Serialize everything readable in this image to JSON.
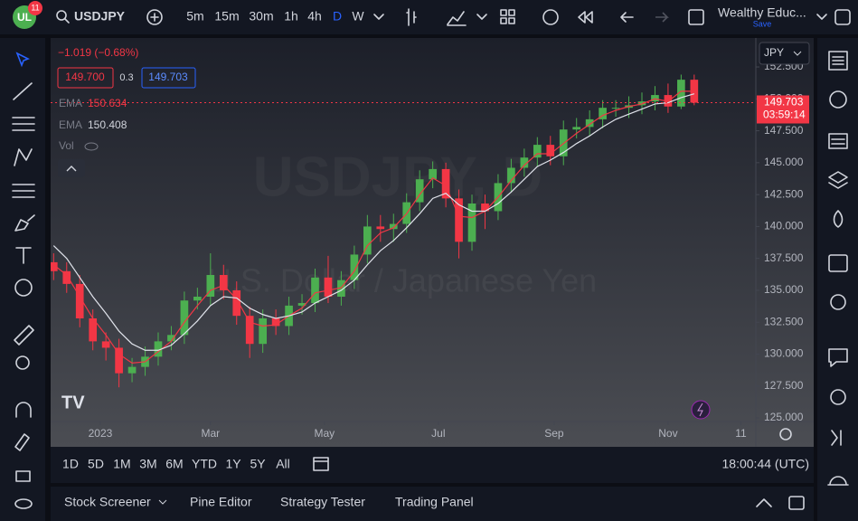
{
  "toolbar": {
    "badge": "11",
    "symbol": "USDJPY",
    "intervals": [
      "5m",
      "15m",
      "30m",
      "1h",
      "4h",
      "D",
      "W"
    ],
    "layout_name": "Wealthy Educ...",
    "save": "Save"
  },
  "legend": {
    "change": "−1.019 (−0.68%)",
    "sell": "149.700",
    "spread": "0.3",
    "buy": "149.703",
    "volume": "Vol"
  },
  "watermark": {
    "title": "USDJPY, D",
    "subtitle": "U.S. Dollar / Japanese Yen"
  },
  "chart_data": {
    "type": "candlestick",
    "currency": "JPY",
    "x": [
      -25,
      -18,
      -11,
      -4,
      3,
      10,
      17,
      24,
      31,
      38,
      45,
      52,
      59,
      66,
      73,
      80,
      87,
      94,
      101,
      108,
      115,
      122,
      129,
      136,
      143,
      150,
      157,
      164,
      171,
      178,
      185,
      192,
      199,
      206,
      213,
      220,
      227,
      234,
      241,
      248,
      255,
      262,
      269,
      276,
      283,
      290,
      297,
      304,
      311,
      318
    ],
    "open": [
      137.2,
      136.5,
      135.5,
      132.8,
      131.0,
      130.5,
      128.5,
      129.0,
      129.8,
      131.0,
      131.5,
      134.2,
      134.5,
      136.2,
      135.0,
      133.0,
      130.8,
      132.8,
      132.2,
      133.8,
      134.0,
      136.0,
      134.5,
      135.8,
      137.8,
      140.0,
      139.8,
      140.2,
      141.9,
      143.7,
      144.5,
      142.2,
      138.8,
      141.8,
      141.2,
      143.4,
      144.6,
      145.4,
      146.4,
      145.5,
      147.6,
      147.8,
      148.4,
      149.3,
      149.3,
      149.5,
      149.8,
      150.3,
      149.4,
      151.5
    ],
    "high": [
      137.9,
      137.2,
      136.2,
      133.5,
      131.7,
      131.2,
      129.7,
      130.6,
      131.7,
      132.2,
      134.9,
      135.2,
      137.9,
      137.0,
      135.7,
      133.7,
      133.5,
      133.5,
      134.5,
      134.7,
      136.7,
      137.7,
      136.5,
      138.5,
      140.9,
      140.9,
      141.0,
      142.6,
      144.4,
      145.1,
      145.0,
      142.9,
      142.5,
      142.5,
      144.1,
      145.3,
      146.1,
      147.0,
      147.1,
      148.3,
      148.5,
      149.1,
      149.9,
      149.9,
      150.2,
      150.5,
      151.0,
      151.2,
      151.9,
      151.9
    ],
    "low": [
      135.8,
      134.8,
      132.1,
      130.3,
      129.5,
      127.4,
      127.8,
      128.3,
      129.1,
      130.3,
      130.8,
      133.5,
      133.8,
      134.3,
      132.3,
      129.7,
      130.1,
      131.5,
      131.5,
      133.1,
      133.3,
      134.0,
      133.8,
      135.1,
      137.1,
      138.8,
      138.8,
      139.5,
      141.2,
      143.0,
      141.5,
      137.5,
      138.1,
      139.8,
      140.5,
      142.7,
      143.9,
      144.7,
      144.8,
      144.8,
      146.9,
      147.1,
      147.7,
      148.6,
      148.5,
      148.8,
      149.1,
      148.9,
      149.2,
      149.5
    ],
    "close": [
      136.5,
      135.5,
      132.8,
      131.0,
      130.5,
      128.5,
      129.0,
      129.8,
      131.0,
      131.5,
      134.2,
      134.5,
      136.2,
      135.0,
      133.0,
      130.8,
      132.8,
      132.2,
      133.8,
      134.0,
      136.0,
      134.5,
      135.8,
      137.8,
      140.0,
      139.8,
      140.2,
      141.9,
      143.7,
      144.5,
      142.2,
      138.8,
      141.8,
      141.2,
      143.4,
      144.6,
      145.4,
      146.4,
      145.5,
      147.6,
      147.8,
      148.4,
      149.3,
      149.3,
      149.5,
      149.8,
      150.3,
      149.4,
      151.5,
      149.7
    ],
    "up_color": "#4caf50",
    "down_color": "#f23645",
    "series": [
      {
        "name": "EMA",
        "color": "#f23645",
        "legend_value": 150.634,
        "values": [
          137.0,
          136.2,
          134.5,
          132.8,
          131.5,
          130.0,
          129.3,
          129.4,
          130.2,
          131.0,
          132.5,
          133.8,
          135.0,
          135.4,
          134.3,
          132.5,
          132.2,
          132.3,
          133.0,
          133.6,
          134.8,
          135.0,
          135.2,
          136.5,
          138.5,
          139.5,
          139.9,
          141.0,
          142.5,
          143.8,
          143.2,
          140.8,
          140.7,
          141.2,
          142.3,
          143.6,
          144.8,
          145.7,
          145.7,
          146.5,
          147.3,
          148.0,
          148.7,
          149.1,
          149.4,
          149.6,
          150.0,
          149.8,
          150.6,
          150.6
        ]
      },
      {
        "name": "EMA",
        "color": "#e0e3eb",
        "legend_value": 150.408,
        "values": [
          138.5,
          137.5,
          136.0,
          134.5,
          133.2,
          131.8,
          130.8,
          130.3,
          130.3,
          130.7,
          131.6,
          132.6,
          133.8,
          134.5,
          134.4,
          133.6,
          133.1,
          132.8,
          133.0,
          133.3,
          134.0,
          134.5,
          135.0,
          135.8,
          137.0,
          138.1,
          138.9,
          139.9,
          141.0,
          142.2,
          142.6,
          141.7,
          141.2,
          141.2,
          141.8,
          142.7,
          143.7,
          144.7,
          145.2,
          145.8,
          146.5,
          147.1,
          147.8,
          148.4,
          148.8,
          149.2,
          149.6,
          149.7,
          150.1,
          150.4
        ]
      }
    ],
    "last_price": 149.703,
    "countdown": "03:59:14",
    "xlim": [
      -26.6,
      351
    ],
    "ylim": [
      124.72,
      154.77
    ],
    "xticks": [
      {
        "value": 0,
        "label": "2023"
      },
      {
        "value": 59,
        "label": "Mar"
      },
      {
        "value": 120,
        "label": "May"
      },
      {
        "value": 181,
        "label": "Jul"
      },
      {
        "value": 243,
        "label": "Sep"
      },
      {
        "value": 304,
        "label": "Nov"
      },
      {
        "value": 343,
        "label": "11"
      }
    ],
    "yticks": [
      {
        "value": 125,
        "label": "125.000"
      },
      {
        "value": 127.5,
        "label": "127.500"
      },
      {
        "value": 130,
        "label": "130.000"
      },
      {
        "value": 132.5,
        "label": "132.500"
      },
      {
        "value": 135,
        "label": "135.000"
      },
      {
        "value": 137.5,
        "label": "137.500"
      },
      {
        "value": 140,
        "label": "140.000"
      },
      {
        "value": 142.5,
        "label": "142.500"
      },
      {
        "value": 145,
        "label": "145.000"
      },
      {
        "value": 147.5,
        "label": "147.500"
      },
      {
        "value": 150,
        "label": "150.000"
      },
      {
        "value": 152.5,
        "label": "152.500"
      }
    ],
    "grid": false
  },
  "range_bar": {
    "ranges": [
      "1D",
      "5D",
      "1M",
      "3M",
      "6M",
      "YTD",
      "1Y",
      "5Y",
      "All"
    ],
    "clock": "18:00:44 (UTC)"
  },
  "bottom_panel": {
    "tabs": [
      "Stock Screener",
      "Pine Editor",
      "Strategy Tester",
      "Trading Panel"
    ]
  }
}
